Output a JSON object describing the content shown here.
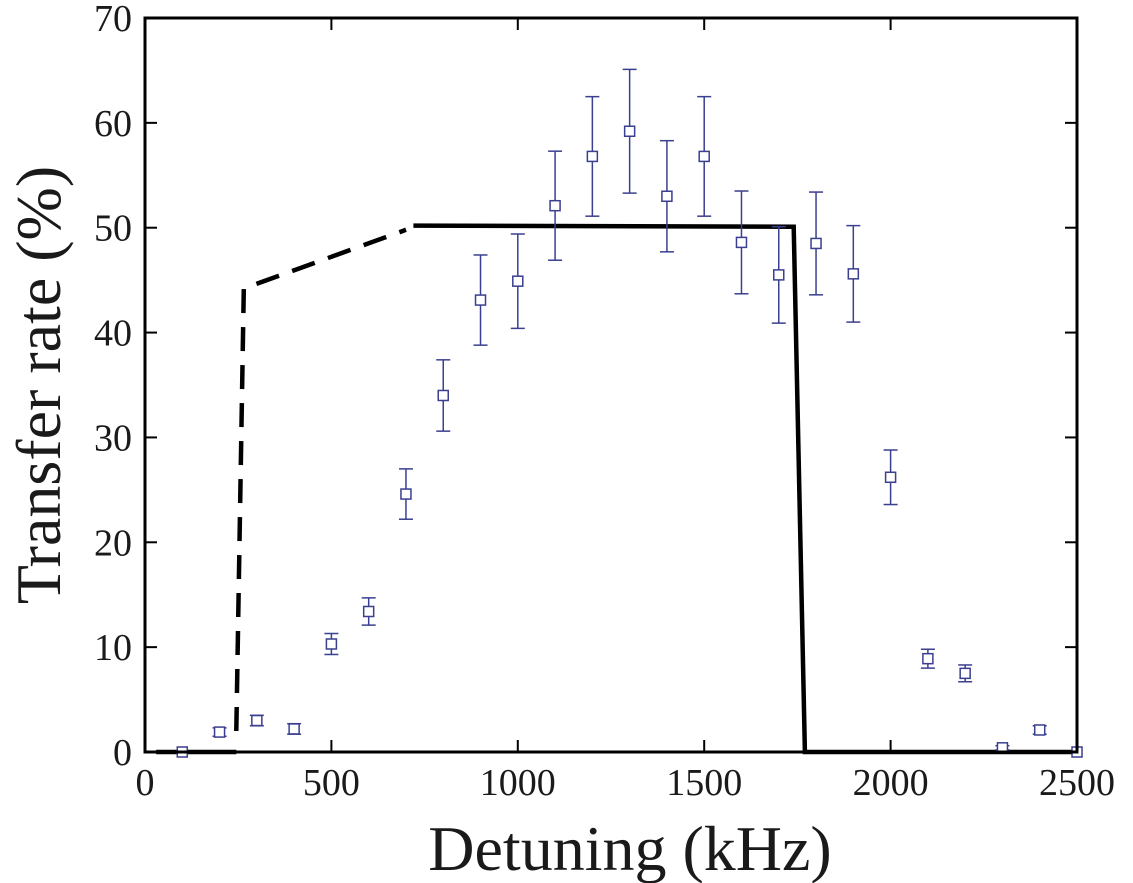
{
  "chart_data": {
    "type": "scatter",
    "title": "",
    "xlabel": "Detuning (kHz)",
    "ylabel": "Transfer rate (%)",
    "xlim": [
      0,
      2500
    ],
    "ylim": [
      0,
      70
    ],
    "xticks": [
      0,
      500,
      1000,
      1500,
      2000,
      2500
    ],
    "yticks": [
      0,
      10,
      20,
      30,
      40,
      50,
      60,
      70
    ],
    "x_tick_labels": [
      "0",
      "500",
      "1000",
      "1500",
      "2000",
      "2500"
    ],
    "y_tick_labels": [
      "0",
      "10",
      "20",
      "30",
      "40",
      "50",
      "60",
      "70"
    ],
    "grid": false,
    "legend": "none",
    "series": [
      {
        "kind": "errorbar-squares",
        "color": "#3a3f8f",
        "points": [
          {
            "x": 100,
            "y": 0.0,
            "err": 0
          },
          {
            "x": 200,
            "y": 1.9,
            "err": 0.4
          },
          {
            "x": 300,
            "y": 3.0,
            "err": 0.5
          },
          {
            "x": 400,
            "y": 2.2,
            "err": 0.5
          },
          {
            "x": 500,
            "y": 10.3,
            "err": 1.0
          },
          {
            "x": 600,
            "y": 13.4,
            "err": 1.3
          },
          {
            "x": 700,
            "y": 24.6,
            "err": 2.4
          },
          {
            "x": 800,
            "y": 34.0,
            "err": 3.4
          },
          {
            "x": 900,
            "y": 43.1,
            "err": 4.3
          },
          {
            "x": 1000,
            "y": 44.9,
            "err": 4.5
          },
          {
            "x": 1100,
            "y": 52.1,
            "err": 5.2
          },
          {
            "x": 1200,
            "y": 56.8,
            "err": 5.7
          },
          {
            "x": 1300,
            "y": 59.2,
            "err": 5.9
          },
          {
            "x": 1400,
            "y": 53.0,
            "err": 5.3
          },
          {
            "x": 1500,
            "y": 56.8,
            "err": 5.7
          },
          {
            "x": 1600,
            "y": 48.6,
            "err": 4.9
          },
          {
            "x": 1700,
            "y": 45.5,
            "err": 4.6
          },
          {
            "x": 1800,
            "y": 48.5,
            "err": 4.9
          },
          {
            "x": 1900,
            "y": 45.6,
            "err": 4.6
          },
          {
            "x": 2000,
            "y": 26.2,
            "err": 2.6
          },
          {
            "x": 2100,
            "y": 8.9,
            "err": 0.9
          },
          {
            "x": 2200,
            "y": 7.5,
            "err": 0.8
          },
          {
            "x": 2300,
            "y": 0.4,
            "err": 0.2
          },
          {
            "x": 2400,
            "y": 2.1,
            "err": 0.4
          },
          {
            "x": 2500,
            "y": 0.0,
            "err": 0
          }
        ]
      },
      {
        "kind": "line-solid",
        "color": "#000000",
        "points": [
          [
            30,
            0
          ],
          [
            245,
            0
          ]
        ]
      },
      {
        "kind": "line-dashed",
        "color": "#000000",
        "points": [
          [
            245,
            2
          ],
          [
            265,
            44.2
          ],
          [
            700,
            49.8
          ]
        ]
      },
      {
        "kind": "line-solid",
        "color": "#000000",
        "points": [
          [
            720,
            50.2
          ],
          [
            1740,
            50.1
          ],
          [
            1770,
            0
          ],
          [
            2500,
            0
          ]
        ]
      }
    ]
  }
}
